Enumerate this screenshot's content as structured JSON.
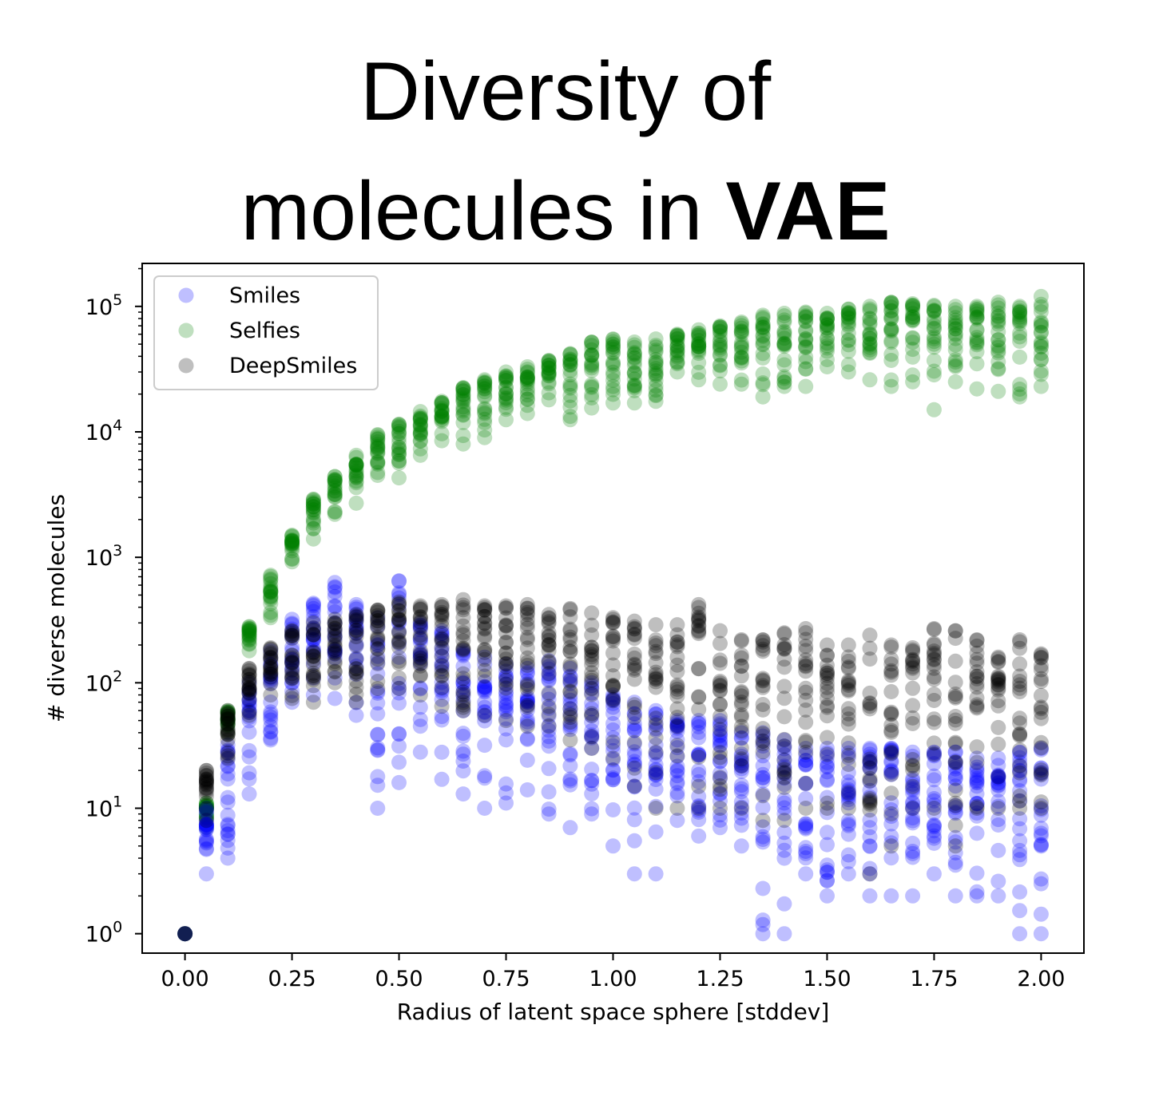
{
  "title": {
    "line1": "Diversity of",
    "line2_prefix": "molecules in ",
    "line2_bold": "VAE"
  },
  "chart_data": {
    "type": "scatter",
    "xlabel": "Radius of latent space sphere [stddev]",
    "ylabel": "# diverse molecules",
    "yscale": "log",
    "xlim": [
      -0.1,
      2.1
    ],
    "ylim": [
      0.7,
      220000
    ],
    "xticks": [
      "0.00",
      "0.25",
      "0.50",
      "0.75",
      "1.00",
      "1.25",
      "1.50",
      "1.75",
      "2.00"
    ],
    "xtick_values": [
      0,
      0.25,
      0.5,
      0.75,
      1.0,
      1.25,
      1.5,
      1.75,
      2.0
    ],
    "ytick_exponents": [
      "0",
      "1",
      "2",
      "3",
      "4",
      "5"
    ],
    "ytick_base": "10",
    "legend_position": "top-left",
    "grid": false,
    "x": [
      0.0,
      0.05,
      0.1,
      0.15,
      0.2,
      0.25,
      0.3,
      0.35,
      0.4,
      0.45,
      0.5,
      0.55,
      0.6,
      0.65,
      0.7,
      0.75,
      0.8,
      0.85,
      0.9,
      0.95,
      1.0,
      1.05,
      1.1,
      1.15,
      1.2,
      1.25,
      1.3,
      1.35,
      1.4,
      1.45,
      1.5,
      1.55,
      1.6,
      1.65,
      1.7,
      1.75,
      1.8,
      1.85,
      1.9,
      1.95,
      2.0
    ],
    "series": [
      {
        "name": "Smiles",
        "color": "#0000ff",
        "range_min": [
          1,
          3,
          4,
          13,
          35,
          70,
          80,
          75,
          55,
          10,
          16,
          28,
          17,
          13,
          10,
          11,
          14,
          9,
          7,
          9,
          5,
          3,
          3,
          8,
          6,
          7,
          5,
          1,
          1,
          3,
          2,
          3,
          2,
          2,
          2,
          3,
          2,
          2,
          2,
          1,
          1
        ],
        "range_max": [
          1,
          10,
          32,
          100,
          180,
          320,
          430,
          630,
          420,
          330,
          650,
          300,
          260,
          180,
          160,
          140,
          130,
          150,
          130,
          100,
          80,
          70,
          60,
          50,
          50,
          50,
          40,
          40,
          35,
          30,
          30,
          30,
          30,
          30,
          28,
          28,
          28,
          25,
          25,
          28,
          30
        ]
      },
      {
        "name": "Selfies",
        "color": "#008000",
        "range_min": [
          1,
          7,
          40,
          180,
          330,
          920,
          1400,
          2200,
          2700,
          4500,
          4300,
          6500,
          8500,
          8000,
          9000,
          12500,
          14000,
          18000,
          12500,
          15500,
          17000,
          17000,
          17500,
          30000,
          26000,
          24000,
          24000,
          19000,
          23000,
          23000,
          33000,
          30000,
          26000,
          23000,
          25000,
          15000,
          25000,
          22000,
          21000,
          19000,
          23000
        ],
        "range_max": [
          1,
          11,
          60,
          280,
          720,
          1500,
          2900,
          4400,
          6500,
          9500,
          11500,
          14500,
          17500,
          22500,
          26000,
          30000,
          33000,
          37000,
          42000,
          52000,
          55000,
          52000,
          55000,
          60000,
          65000,
          70000,
          75000,
          85000,
          88000,
          90000,
          88000,
          95000,
          100000,
          108000,
          105000,
          102000,
          100000,
          100000,
          108000,
          100000,
          120000
        ]
      },
      {
        "name": "DeepSmiles",
        "color": "#000000",
        "range_min": [
          1,
          8,
          25,
          55,
          80,
          75,
          70,
          100,
          70,
          90,
          90,
          80,
          65,
          60,
          55,
          50,
          45,
          45,
          35,
          30,
          25,
          15,
          10,
          10,
          10,
          10,
          10,
          8,
          8,
          10,
          10,
          10,
          3,
          5,
          10,
          10,
          5,
          10,
          10,
          10,
          10
        ],
        "range_max": [
          1,
          20,
          60,
          130,
          190,
          260,
          300,
          320,
          350,
          380,
          440,
          410,
          420,
          460,
          410,
          410,
          420,
          350,
          390,
          360,
          330,
          310,
          290,
          290,
          420,
          260,
          220,
          220,
          250,
          270,
          200,
          200,
          240,
          200,
          190,
          270,
          260,
          220,
          160,
          220,
          170
        ]
      }
    ]
  }
}
